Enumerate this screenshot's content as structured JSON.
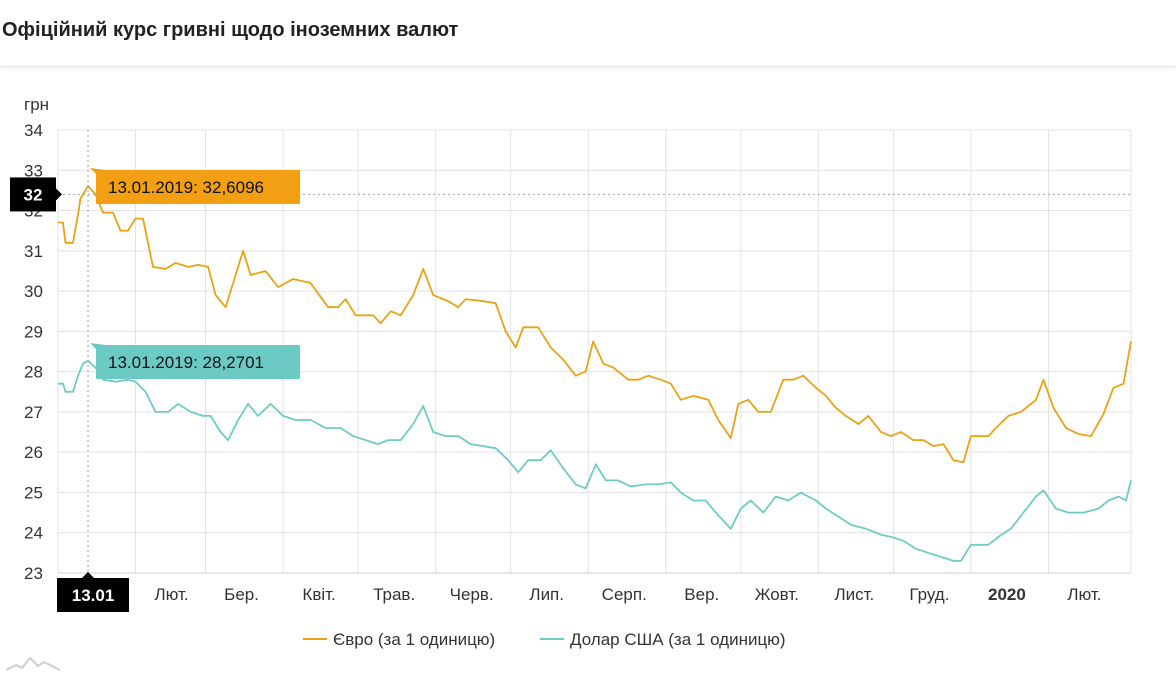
{
  "title": "Офіційний курс гривні щодо іноземних валют",
  "colors": {
    "euro": "#E8A317",
    "usd": "#6FCBC6",
    "euro_tooltip": "#F29F13",
    "usd_tooltip": "#6CCAC5",
    "crosshair_label": "#000000"
  },
  "tooltips": {
    "euro": "13.01.2019: 32,6096",
    "usd": "13.01.2019: 28,2701"
  },
  "crosshair": {
    "x_label": "13.01",
    "y_label": "32"
  },
  "chart_data": {
    "type": "line",
    "ylabel": "грн",
    "ylim": [
      23,
      34
    ],
    "yticks": [
      "23",
      "24",
      "25",
      "26",
      "27",
      "28",
      "29",
      "30",
      "31",
      "32",
      "33",
      "34"
    ],
    "grid": true,
    "legend_position": "bottom",
    "x_start": "2019-01-01",
    "x_end": "2020-03-05",
    "x_tick_labels": [
      {
        "date": "2019-02-01",
        "label": "Лют.",
        "bold": false
      },
      {
        "date": "2019-03-01",
        "label": "Бер.",
        "bold": false
      },
      {
        "date": "2019-04-01",
        "label": "Квіт.",
        "bold": false
      },
      {
        "date": "2019-05-01",
        "label": "Трав.",
        "bold": false
      },
      {
        "date": "2019-06-01",
        "label": "Черв.",
        "bold": false
      },
      {
        "date": "2019-07-01",
        "label": "Лип.",
        "bold": false
      },
      {
        "date": "2019-08-01",
        "label": "Серп.",
        "bold": false
      },
      {
        "date": "2019-09-01",
        "label": "Вер.",
        "bold": false
      },
      {
        "date": "2019-10-01",
        "label": "Жовт.",
        "bold": false
      },
      {
        "date": "2019-11-01",
        "label": "Лист.",
        "bold": false
      },
      {
        "date": "2019-12-01",
        "label": "Груд.",
        "bold": false
      },
      {
        "date": "2020-01-01",
        "label": "2020",
        "bold": true
      },
      {
        "date": "2020-02-01",
        "label": "Лют.",
        "bold": false
      }
    ],
    "series": [
      {
        "name": "Євро (за 1 одиницю)",
        "color": "#E8A317",
        "points": [
          [
            "2019-01-01",
            31.7
          ],
          [
            "2019-01-03",
            31.7
          ],
          [
            "2019-01-04",
            31.2
          ],
          [
            "2019-01-07",
            31.2
          ],
          [
            "2019-01-09",
            31.9
          ],
          [
            "2019-01-10",
            32.3
          ],
          [
            "2019-01-13",
            32.61
          ],
          [
            "2019-01-16",
            32.4
          ],
          [
            "2019-01-19",
            31.95
          ],
          [
            "2019-01-23",
            31.95
          ],
          [
            "2019-01-26",
            31.5
          ],
          [
            "2019-01-29",
            31.5
          ],
          [
            "2019-02-01",
            31.8
          ],
          [
            "2019-02-04",
            31.8
          ],
          [
            "2019-02-08",
            30.6
          ],
          [
            "2019-02-13",
            30.55
          ],
          [
            "2019-02-17",
            30.7
          ],
          [
            "2019-02-22",
            30.6
          ],
          [
            "2019-02-26",
            30.65
          ],
          [
            "2019-03-02",
            30.6
          ],
          [
            "2019-03-05",
            29.9
          ],
          [
            "2019-03-09",
            29.6
          ],
          [
            "2019-03-12",
            30.2
          ],
          [
            "2019-03-16",
            31.0
          ],
          [
            "2019-03-19",
            30.4
          ],
          [
            "2019-03-25",
            30.5
          ],
          [
            "2019-03-30",
            30.1
          ],
          [
            "2019-04-05",
            30.3
          ],
          [
            "2019-04-12",
            30.2
          ],
          [
            "2019-04-19",
            29.6
          ],
          [
            "2019-04-23",
            29.6
          ],
          [
            "2019-04-26",
            29.8
          ],
          [
            "2019-04-30",
            29.4
          ],
          [
            "2019-05-07",
            29.4
          ],
          [
            "2019-05-10",
            29.2
          ],
          [
            "2019-05-14",
            29.5
          ],
          [
            "2019-05-18",
            29.4
          ],
          [
            "2019-05-23",
            29.9
          ],
          [
            "2019-05-27",
            30.55
          ],
          [
            "2019-05-31",
            29.9
          ],
          [
            "2019-06-06",
            29.75
          ],
          [
            "2019-06-10",
            29.6
          ],
          [
            "2019-06-13",
            29.8
          ],
          [
            "2019-06-20",
            29.75
          ],
          [
            "2019-06-25",
            29.7
          ],
          [
            "2019-06-29",
            29.0
          ],
          [
            "2019-07-03",
            28.6
          ],
          [
            "2019-07-06",
            29.1
          ],
          [
            "2019-07-12",
            29.1
          ],
          [
            "2019-07-17",
            28.6
          ],
          [
            "2019-07-22",
            28.3
          ],
          [
            "2019-07-27",
            27.9
          ],
          [
            "2019-07-31",
            28.0
          ],
          [
            "2019-08-03",
            28.75
          ],
          [
            "2019-08-07",
            28.2
          ],
          [
            "2019-08-11",
            28.1
          ],
          [
            "2019-08-17",
            27.8
          ],
          [
            "2019-08-21",
            27.8
          ],
          [
            "2019-08-25",
            27.9
          ],
          [
            "2019-08-30",
            27.8
          ],
          [
            "2019-09-03",
            27.7
          ],
          [
            "2019-09-07",
            27.3
          ],
          [
            "2019-09-12",
            27.4
          ],
          [
            "2019-09-18",
            27.3
          ],
          [
            "2019-09-22",
            26.8
          ],
          [
            "2019-09-27",
            26.35
          ],
          [
            "2019-09-30",
            27.2
          ],
          [
            "2019-10-04",
            27.3
          ],
          [
            "2019-10-08",
            27.0
          ],
          [
            "2019-10-13",
            27.0
          ],
          [
            "2019-10-18",
            27.8
          ],
          [
            "2019-10-22",
            27.8
          ],
          [
            "2019-10-26",
            27.9
          ],
          [
            "2019-10-31",
            27.6
          ],
          [
            "2019-11-04",
            27.4
          ],
          [
            "2019-11-08",
            27.1
          ],
          [
            "2019-11-12",
            26.9
          ],
          [
            "2019-11-17",
            26.7
          ],
          [
            "2019-11-21",
            26.9
          ],
          [
            "2019-11-26",
            26.5
          ],
          [
            "2019-11-30",
            26.4
          ],
          [
            "2019-12-04",
            26.5
          ],
          [
            "2019-12-09",
            26.3
          ],
          [
            "2019-12-13",
            26.3
          ],
          [
            "2019-12-17",
            26.15
          ],
          [
            "2019-12-21",
            26.2
          ],
          [
            "2019-12-25",
            25.8
          ],
          [
            "2019-12-29",
            25.75
          ],
          [
            "2020-01-01",
            26.4
          ],
          [
            "2020-01-08",
            26.4
          ],
          [
            "2020-01-11",
            26.6
          ],
          [
            "2020-01-16",
            26.9
          ],
          [
            "2020-01-21",
            27.0
          ],
          [
            "2020-01-27",
            27.3
          ],
          [
            "2020-01-30",
            27.8
          ],
          [
            "2020-02-03",
            27.1
          ],
          [
            "2020-02-08",
            26.6
          ],
          [
            "2020-02-13",
            26.45
          ],
          [
            "2020-02-18",
            26.4
          ],
          [
            "2020-02-23",
            26.95
          ],
          [
            "2020-02-27",
            27.6
          ],
          [
            "2020-03-02",
            27.7
          ],
          [
            "2020-03-05",
            28.75
          ]
        ]
      },
      {
        "name": "Долар США (за 1 одиницю)",
        "color": "#6FCBC6",
        "points": [
          [
            "2019-01-01",
            27.7
          ],
          [
            "2019-01-03",
            27.7
          ],
          [
            "2019-01-04",
            27.5
          ],
          [
            "2019-01-07",
            27.5
          ],
          [
            "2019-01-09",
            27.9
          ],
          [
            "2019-01-11",
            28.2
          ],
          [
            "2019-01-13",
            28.27
          ],
          [
            "2019-01-16",
            28.1
          ],
          [
            "2019-01-19",
            27.8
          ],
          [
            "2019-01-24",
            27.75
          ],
          [
            "2019-01-29",
            27.8
          ],
          [
            "2019-02-01",
            27.75
          ],
          [
            "2019-02-05",
            27.5
          ],
          [
            "2019-02-09",
            27.0
          ],
          [
            "2019-02-14",
            27.0
          ],
          [
            "2019-02-18",
            27.2
          ],
          [
            "2019-02-23",
            27.0
          ],
          [
            "2019-02-28",
            26.9
          ],
          [
            "2019-03-03",
            26.9
          ],
          [
            "2019-03-07",
            26.5
          ],
          [
            "2019-03-10",
            26.3
          ],
          [
            "2019-03-14",
            26.8
          ],
          [
            "2019-03-18",
            27.2
          ],
          [
            "2019-03-22",
            26.9
          ],
          [
            "2019-03-27",
            27.2
          ],
          [
            "2019-04-01",
            26.9
          ],
          [
            "2019-04-06",
            26.8
          ],
          [
            "2019-04-12",
            26.8
          ],
          [
            "2019-04-18",
            26.6
          ],
          [
            "2019-04-24",
            26.6
          ],
          [
            "2019-04-29",
            26.4
          ],
          [
            "2019-05-04",
            26.3
          ],
          [
            "2019-05-09",
            26.2
          ],
          [
            "2019-05-13",
            26.3
          ],
          [
            "2019-05-18",
            26.3
          ],
          [
            "2019-05-23",
            26.7
          ],
          [
            "2019-05-27",
            27.15
          ],
          [
            "2019-05-31",
            26.5
          ],
          [
            "2019-06-05",
            26.4
          ],
          [
            "2019-06-10",
            26.4
          ],
          [
            "2019-06-15",
            26.2
          ],
          [
            "2019-06-20",
            26.15
          ],
          [
            "2019-06-25",
            26.1
          ],
          [
            "2019-06-30",
            25.8
          ],
          [
            "2019-07-04",
            25.5
          ],
          [
            "2019-07-08",
            25.8
          ],
          [
            "2019-07-13",
            25.8
          ],
          [
            "2019-07-17",
            26.05
          ],
          [
            "2019-07-22",
            25.6
          ],
          [
            "2019-07-27",
            25.2
          ],
          [
            "2019-07-31",
            25.1
          ],
          [
            "2019-08-04",
            25.7
          ],
          [
            "2019-08-08",
            25.3
          ],
          [
            "2019-08-13",
            25.3
          ],
          [
            "2019-08-18",
            25.15
          ],
          [
            "2019-08-24",
            25.2
          ],
          [
            "2019-08-29",
            25.2
          ],
          [
            "2019-09-03",
            25.25
          ],
          [
            "2019-09-07",
            25.0
          ],
          [
            "2019-09-12",
            24.8
          ],
          [
            "2019-09-17",
            24.8
          ],
          [
            "2019-09-21",
            24.5
          ],
          [
            "2019-09-27",
            24.1
          ],
          [
            "2019-10-01",
            24.6
          ],
          [
            "2019-10-05",
            24.8
          ],
          [
            "2019-10-10",
            24.5
          ],
          [
            "2019-10-15",
            24.9
          ],
          [
            "2019-10-20",
            24.8
          ],
          [
            "2019-10-25",
            25.0
          ],
          [
            "2019-10-31",
            24.8
          ],
          [
            "2019-11-04",
            24.6
          ],
          [
            "2019-11-09",
            24.4
          ],
          [
            "2019-11-14",
            24.2
          ],
          [
            "2019-11-20",
            24.1
          ],
          [
            "2019-11-26",
            23.95
          ],
          [
            "2019-11-30",
            23.9
          ],
          [
            "2019-12-05",
            23.8
          ],
          [
            "2019-12-10",
            23.6
          ],
          [
            "2019-12-15",
            23.5
          ],
          [
            "2019-12-20",
            23.4
          ],
          [
            "2019-12-25",
            23.3
          ],
          [
            "2019-12-28",
            23.3
          ],
          [
            "2020-01-01",
            23.7
          ],
          [
            "2020-01-08",
            23.7
          ],
          [
            "2020-01-12",
            23.9
          ],
          [
            "2020-01-17",
            24.1
          ],
          [
            "2020-01-22",
            24.5
          ],
          [
            "2020-01-27",
            24.9
          ],
          [
            "2020-01-30",
            25.05
          ],
          [
            "2020-02-04",
            24.6
          ],
          [
            "2020-02-09",
            24.5
          ],
          [
            "2020-02-15",
            24.5
          ],
          [
            "2020-02-21",
            24.6
          ],
          [
            "2020-02-25",
            24.8
          ],
          [
            "2020-02-29",
            24.9
          ],
          [
            "2020-03-03",
            24.8
          ],
          [
            "2020-03-05",
            25.3
          ]
        ]
      }
    ]
  }
}
